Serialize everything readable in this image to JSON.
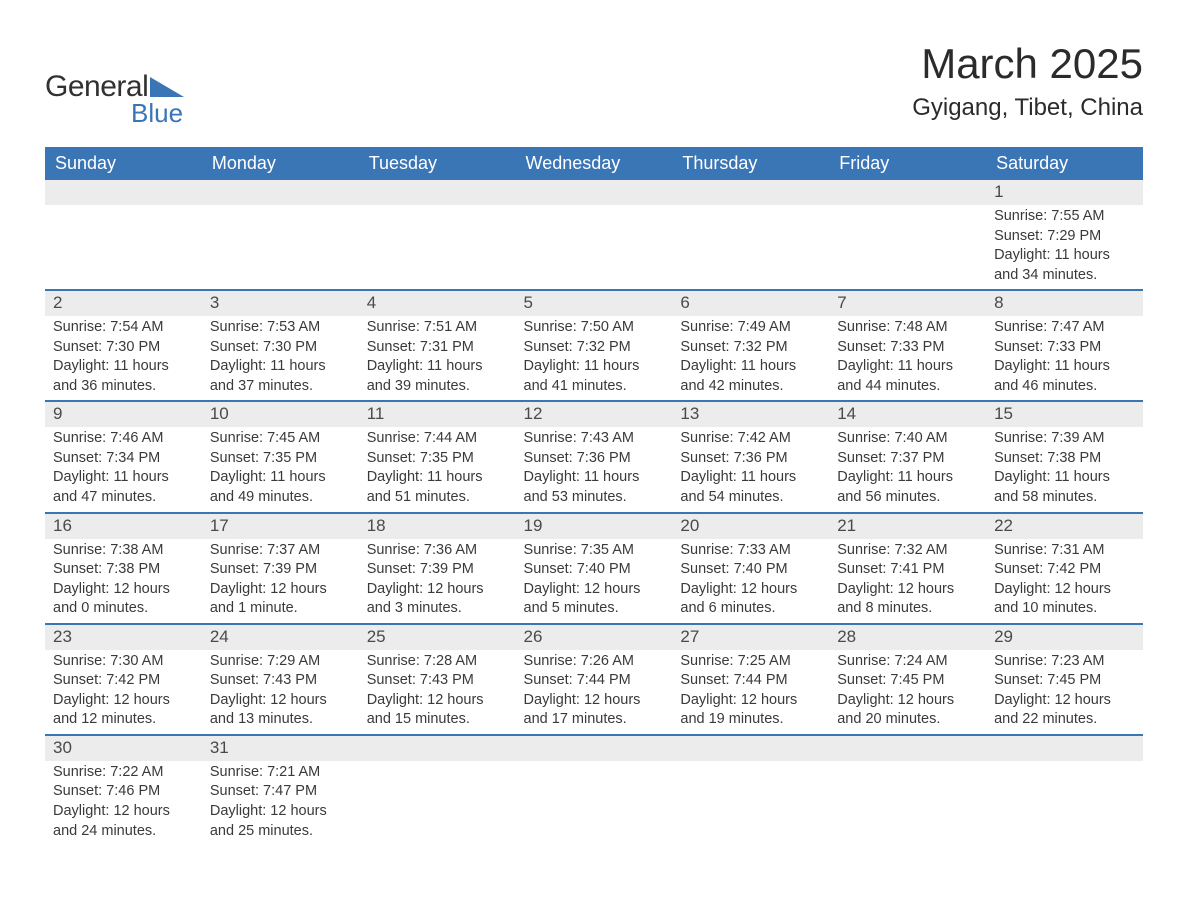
{
  "logo": {
    "general": "General",
    "blue": "Blue"
  },
  "title": "March 2025",
  "location": "Gyigang, Tibet, China",
  "colors": {
    "header_bg": "#3a75b5",
    "header_text": "#ffffff",
    "daynum_bg": "#ececec",
    "row_border": "#3a75b5",
    "text": "#3a3a3a",
    "page_bg": "#ffffff"
  },
  "day_headers": [
    "Sunday",
    "Monday",
    "Tuesday",
    "Wednesday",
    "Thursday",
    "Friday",
    "Saturday"
  ],
  "weeks": [
    [
      null,
      null,
      null,
      null,
      null,
      null,
      {
        "n": "1",
        "sr": "7:55 AM",
        "ss": "7:29 PM",
        "dl": "11 hours and 34 minutes."
      }
    ],
    [
      {
        "n": "2",
        "sr": "7:54 AM",
        "ss": "7:30 PM",
        "dl": "11 hours and 36 minutes."
      },
      {
        "n": "3",
        "sr": "7:53 AM",
        "ss": "7:30 PM",
        "dl": "11 hours and 37 minutes."
      },
      {
        "n": "4",
        "sr": "7:51 AM",
        "ss": "7:31 PM",
        "dl": "11 hours and 39 minutes."
      },
      {
        "n": "5",
        "sr": "7:50 AM",
        "ss": "7:32 PM",
        "dl": "11 hours and 41 minutes."
      },
      {
        "n": "6",
        "sr": "7:49 AM",
        "ss": "7:32 PM",
        "dl": "11 hours and 42 minutes."
      },
      {
        "n": "7",
        "sr": "7:48 AM",
        "ss": "7:33 PM",
        "dl": "11 hours and 44 minutes."
      },
      {
        "n": "8",
        "sr": "7:47 AM",
        "ss": "7:33 PM",
        "dl": "11 hours and 46 minutes."
      }
    ],
    [
      {
        "n": "9",
        "sr": "7:46 AM",
        "ss": "7:34 PM",
        "dl": "11 hours and 47 minutes."
      },
      {
        "n": "10",
        "sr": "7:45 AM",
        "ss": "7:35 PM",
        "dl": "11 hours and 49 minutes."
      },
      {
        "n": "11",
        "sr": "7:44 AM",
        "ss": "7:35 PM",
        "dl": "11 hours and 51 minutes."
      },
      {
        "n": "12",
        "sr": "7:43 AM",
        "ss": "7:36 PM",
        "dl": "11 hours and 53 minutes."
      },
      {
        "n": "13",
        "sr": "7:42 AM",
        "ss": "7:36 PM",
        "dl": "11 hours and 54 minutes."
      },
      {
        "n": "14",
        "sr": "7:40 AM",
        "ss": "7:37 PM",
        "dl": "11 hours and 56 minutes."
      },
      {
        "n": "15",
        "sr": "7:39 AM",
        "ss": "7:38 PM",
        "dl": "11 hours and 58 minutes."
      }
    ],
    [
      {
        "n": "16",
        "sr": "7:38 AM",
        "ss": "7:38 PM",
        "dl": "12 hours and 0 minutes."
      },
      {
        "n": "17",
        "sr": "7:37 AM",
        "ss": "7:39 PM",
        "dl": "12 hours and 1 minute."
      },
      {
        "n": "18",
        "sr": "7:36 AM",
        "ss": "7:39 PM",
        "dl": "12 hours and 3 minutes."
      },
      {
        "n": "19",
        "sr": "7:35 AM",
        "ss": "7:40 PM",
        "dl": "12 hours and 5 minutes."
      },
      {
        "n": "20",
        "sr": "7:33 AM",
        "ss": "7:40 PM",
        "dl": "12 hours and 6 minutes."
      },
      {
        "n": "21",
        "sr": "7:32 AM",
        "ss": "7:41 PM",
        "dl": "12 hours and 8 minutes."
      },
      {
        "n": "22",
        "sr": "7:31 AM",
        "ss": "7:42 PM",
        "dl": "12 hours and 10 minutes."
      }
    ],
    [
      {
        "n": "23",
        "sr": "7:30 AM",
        "ss": "7:42 PM",
        "dl": "12 hours and 12 minutes."
      },
      {
        "n": "24",
        "sr": "7:29 AM",
        "ss": "7:43 PM",
        "dl": "12 hours and 13 minutes."
      },
      {
        "n": "25",
        "sr": "7:28 AM",
        "ss": "7:43 PM",
        "dl": "12 hours and 15 minutes."
      },
      {
        "n": "26",
        "sr": "7:26 AM",
        "ss": "7:44 PM",
        "dl": "12 hours and 17 minutes."
      },
      {
        "n": "27",
        "sr": "7:25 AM",
        "ss": "7:44 PM",
        "dl": "12 hours and 19 minutes."
      },
      {
        "n": "28",
        "sr": "7:24 AM",
        "ss": "7:45 PM",
        "dl": "12 hours and 20 minutes."
      },
      {
        "n": "29",
        "sr": "7:23 AM",
        "ss": "7:45 PM",
        "dl": "12 hours and 22 minutes."
      }
    ],
    [
      {
        "n": "30",
        "sr": "7:22 AM",
        "ss": "7:46 PM",
        "dl": "12 hours and 24 minutes."
      },
      {
        "n": "31",
        "sr": "7:21 AM",
        "ss": "7:47 PM",
        "dl": "12 hours and 25 minutes."
      },
      null,
      null,
      null,
      null,
      null
    ]
  ],
  "labels": {
    "sunrise": "Sunrise: ",
    "sunset": "Sunset: ",
    "daylight": "Daylight: "
  }
}
